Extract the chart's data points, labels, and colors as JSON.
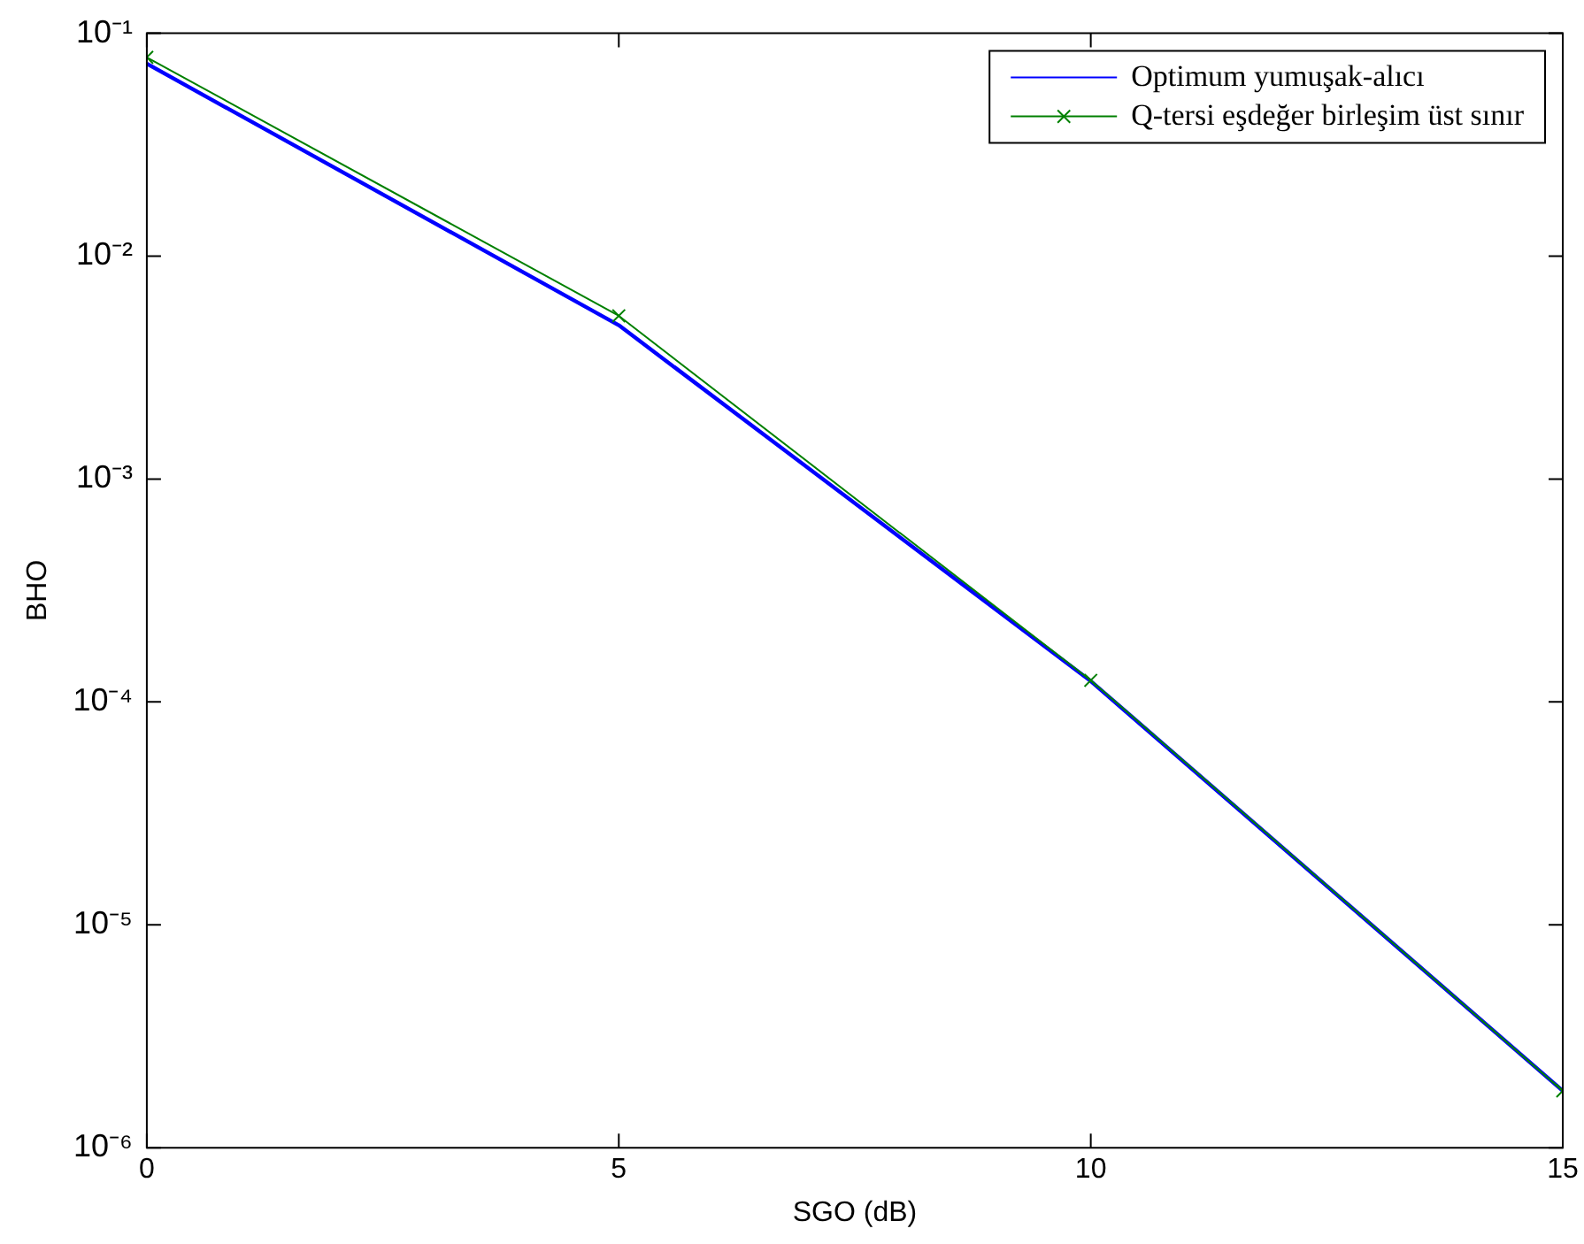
{
  "chart_data": {
    "type": "line",
    "xlabel": "SGO (dB)",
    "ylabel": "BHO",
    "x": [
      0,
      5,
      10,
      15
    ],
    "series": [
      {
        "name": "Optimum yumuşak-alıcı",
        "color": "#0000ff",
        "marker": "none",
        "values": [
          0.073,
          0.0049,
          0.000124,
          1.8e-06
        ]
      },
      {
        "name": "Q-tersi eşdeğer birleşim üst sınır",
        "color": "#008000",
        "marker": "cross",
        "values": [
          0.078,
          0.0054,
          0.000125,
          1.8e-06
        ]
      }
    ],
    "log": "y",
    "xlim": [
      0,
      15
    ],
    "xticks": [
      0,
      5,
      10,
      15
    ],
    "ylim": [
      1e-06,
      0.1
    ],
    "yticks": [
      {
        "value": 1e-06,
        "label": "10⁻⁶"
      },
      {
        "value": 1e-05,
        "label": "10⁻⁵"
      },
      {
        "value": 0.0001,
        "label": "10⁻⁴"
      },
      {
        "value": 0.001,
        "label": "10⁻³"
      },
      {
        "value": 0.01,
        "label": "10⁻²"
      },
      {
        "value": 0.1,
        "label": "10⁻¹"
      }
    ],
    "grid": false,
    "legend": "top right",
    "line_style": "solid"
  }
}
